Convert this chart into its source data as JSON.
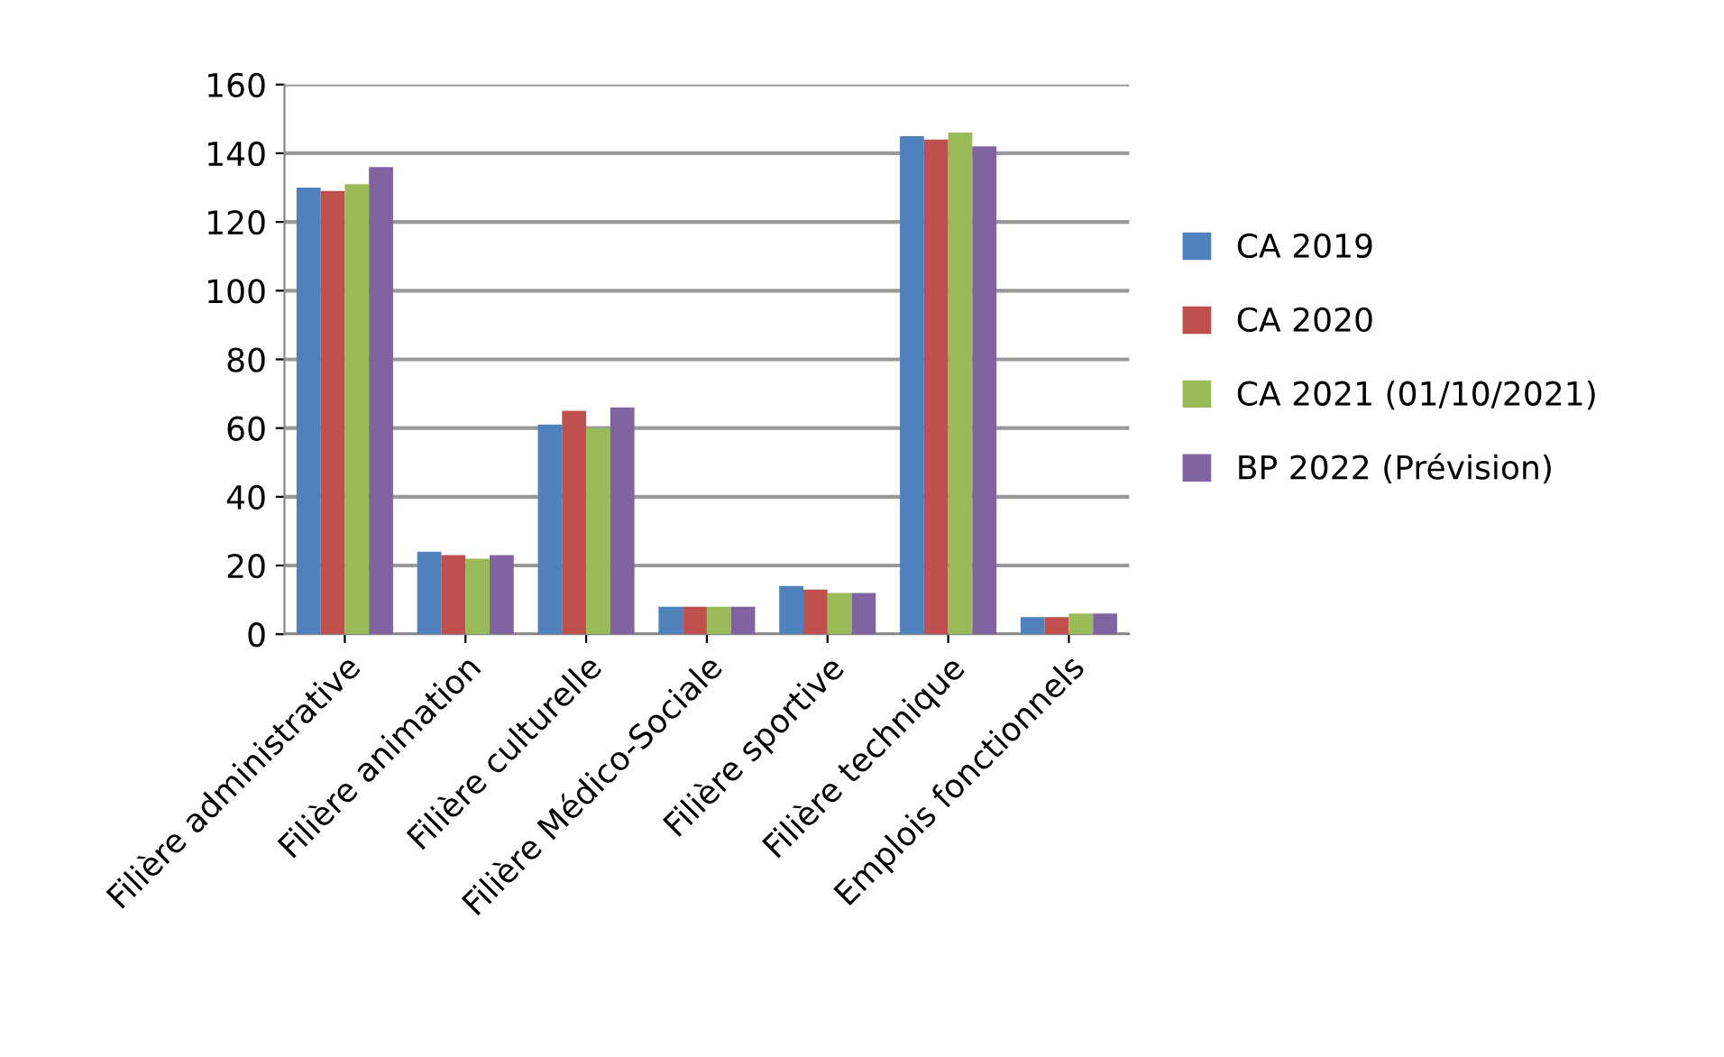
{
  "chart_data": {
    "type": "bar",
    "categories": [
      "Filière administrative",
      "Filière animation",
      "Filière culturelle",
      "Filière Médico-Sociale",
      "Filière sportive",
      "Filière technique",
      "Emplois fonctionnels"
    ],
    "series": [
      {
        "name": "CA 2019",
        "color": "#4f81bd",
        "values": [
          130,
          24,
          61,
          8,
          14,
          145,
          5
        ]
      },
      {
        "name": "CA 2020",
        "color": "#c0504d",
        "values": [
          129,
          23,
          65,
          8,
          13,
          144,
          5
        ]
      },
      {
        "name": "CA 2021 (01/10/2021)",
        "color": "#9bbb59",
        "values": [
          131,
          22,
          60,
          8,
          12,
          146,
          6
        ]
      },
      {
        "name": "BP 2022 (Prévision)",
        "color": "#8064a2",
        "values": [
          136,
          23,
          66,
          8,
          12,
          142,
          6
        ]
      }
    ],
    "ylim": [
      0,
      160
    ],
    "yticks": [
      0,
      20,
      40,
      60,
      80,
      100,
      120,
      140,
      160
    ],
    "grid": "y",
    "legend": "right"
  }
}
